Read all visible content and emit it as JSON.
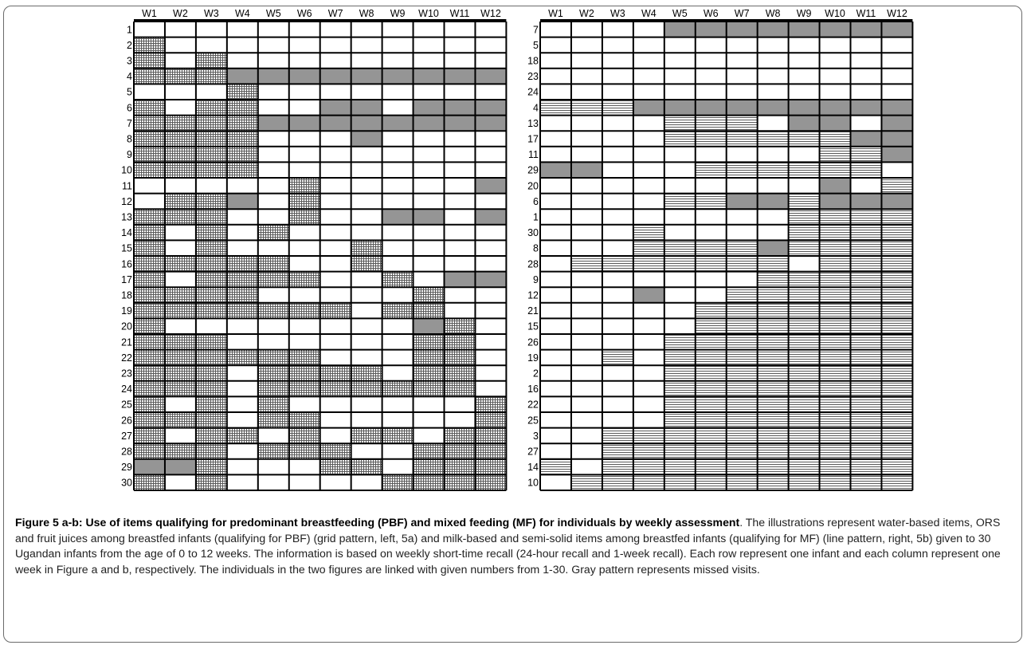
{
  "figure": {
    "patterns": {
      "G": "grid pattern (PBF items)",
      "L": "line pattern (MF items)",
      "X": "gray (missed visit)",
      "W": "white"
    },
    "colors": {
      "missed": "#959595",
      "hatch": "#5a5a5a",
      "line": "#000000",
      "white": "#ffffff"
    },
    "panel_a": {
      "weeks": [
        "W1",
        "W2",
        "W3",
        "W4",
        "W5",
        "W6",
        "W7",
        "W8",
        "W9",
        "W10",
        "W11",
        "W12"
      ],
      "rows": [
        {
          "id": "1",
          "cells": "WWWWWWWWWWWW"
        },
        {
          "id": "2",
          "cells": "GWWWWWWWWWWW"
        },
        {
          "id": "3",
          "cells": "GWGWWWWWWWWW"
        },
        {
          "id": "4",
          "cells": "GGGXXXXXXXXX"
        },
        {
          "id": "5",
          "cells": "WWWGWWWWWWWW"
        },
        {
          "id": "6",
          "cells": "GWGGWWXXWXXX"
        },
        {
          "id": "7",
          "cells": "GGGGXXXXXXXX"
        },
        {
          "id": "8",
          "cells": "GGGGWWWXWWWW"
        },
        {
          "id": "9",
          "cells": "GGGGWWWWWWWW"
        },
        {
          "id": "10",
          "cells": "GGGGWWWWWWWW"
        },
        {
          "id": "11",
          "cells": "WWWWWGWWWWWX"
        },
        {
          "id": "12",
          "cells": "WGGXWGWWWWWW"
        },
        {
          "id": "13",
          "cells": "GGGWWGWWXXWX"
        },
        {
          "id": "14",
          "cells": "GWGWGWWWWWWW"
        },
        {
          "id": "15",
          "cells": "GWGWWWWGWWWW"
        },
        {
          "id": "16",
          "cells": "GGGGGWWGWWWW"
        },
        {
          "id": "17",
          "cells": "GWGGGGWWGWXX"
        },
        {
          "id": "18",
          "cells": "GGGGWWWWWGWW"
        },
        {
          "id": "19",
          "cells": "GGGGGGGWGGWW"
        },
        {
          "id": "20",
          "cells": "GWWWWWWWWXGW"
        },
        {
          "id": "21",
          "cells": "GGGWWWWWWGGW"
        },
        {
          "id": "22",
          "cells": "GGGGGGWWWGGW"
        },
        {
          "id": "23",
          "cells": "GGGWGGGGWGGW"
        },
        {
          "id": "24",
          "cells": "GGGWGGGGGGGW"
        },
        {
          "id": "25",
          "cells": "GWGWGWWWWWWG"
        },
        {
          "id": "26",
          "cells": "GGGWGGWWWWWG"
        },
        {
          "id": "27",
          "cells": "GWGGWGWGGWGG"
        },
        {
          "id": "28",
          "cells": "GGGWGGGWWGGG"
        },
        {
          "id": "29",
          "cells": "XXGWWWGGWGGG"
        },
        {
          "id": "30",
          "cells": "GWGWWWWWGGGG"
        }
      ]
    },
    "panel_b": {
      "weeks": [
        "W1",
        "W2",
        "W3",
        "W4",
        "W5",
        "W6",
        "W7",
        "W8",
        "W9",
        "W10",
        "W11",
        "W12"
      ],
      "rows": [
        {
          "id": "7",
          "cells": "WWWWXXXXXXXX"
        },
        {
          "id": "5",
          "cells": "WWWWWWWWWWWW"
        },
        {
          "id": "18",
          "cells": "WWWWWWWWWWWW"
        },
        {
          "id": "23",
          "cells": "WWWWWWWWWWWW"
        },
        {
          "id": "24",
          "cells": "WWWWWWWWWWWW"
        },
        {
          "id": "4",
          "cells": "LLLXXXXXXXXX"
        },
        {
          "id": "13",
          "cells": "WWWWLLLWXXWX"
        },
        {
          "id": "17",
          "cells": "WWWWLLLLLLXX"
        },
        {
          "id": "11",
          "cells": "WWWWWWWWWLLX"
        },
        {
          "id": "29",
          "cells": "XXWWWLLLLLLW"
        },
        {
          "id": "20",
          "cells": "WWWWWWWWWXWL"
        },
        {
          "id": "6",
          "cells": "WWWWLLXXLXXX"
        },
        {
          "id": "1",
          "cells": "WWWWWWWWLLLL"
        },
        {
          "id": "30",
          "cells": "WWWLWWWWLLLL"
        },
        {
          "id": "8",
          "cells": "WWWLLLLXLLLL"
        },
        {
          "id": "28",
          "cells": "WLLLLLLLWLLL"
        },
        {
          "id": "9",
          "cells": "WWWWWWWLLLLL"
        },
        {
          "id": "12",
          "cells": "WWWXWWLLLLLL"
        },
        {
          "id": "21",
          "cells": "WWWWWLLLLLLL"
        },
        {
          "id": "15",
          "cells": "WWWWWLLLLLLL"
        },
        {
          "id": "26",
          "cells": "WWWWLLLLLLLL"
        },
        {
          "id": "19",
          "cells": "WWLWLLLLLLLL"
        },
        {
          "id": "2",
          "cells": "WWWWLLLLLLLL"
        },
        {
          "id": "16",
          "cells": "WWWWLLLLLLLL"
        },
        {
          "id": "22",
          "cells": "WWWWLLLLLLLL"
        },
        {
          "id": "25",
          "cells": "WWWWLLLLLLLL"
        },
        {
          "id": "3",
          "cells": "WWLLLLLLLLLL"
        },
        {
          "id": "27",
          "cells": "WWLLLLLLLLLL"
        },
        {
          "id": "14",
          "cells": "LWLLLLLLLLLL"
        },
        {
          "id": "10",
          "cells": "WLLLLLLLLLLL"
        }
      ]
    }
  },
  "caption": {
    "title": "Figure 5 a-b: Use of items qualifying for predominant breastfeeding (PBF) and mixed feeding (MF) for individuals by weekly assessment",
    "body": ". The illustrations represent water-based items, ORS and fruit juices among breastfed infants (qualifying for PBF) (grid pattern, left, 5a) and milk-based and semi-solid items among breastfed infants (qualifying for MF) (line pattern, right, 5b) given to 30 Ugandan infants from the age of 0 to 12 weeks. The information is based on weekly short-time recall (24-hour recall and 1-week recall). Each row represent one infant and each column represent one week in Figure a and b, respectively. The individuals in the two figures are linked with given numbers from 1-30. Gray pattern represents missed visits."
  }
}
